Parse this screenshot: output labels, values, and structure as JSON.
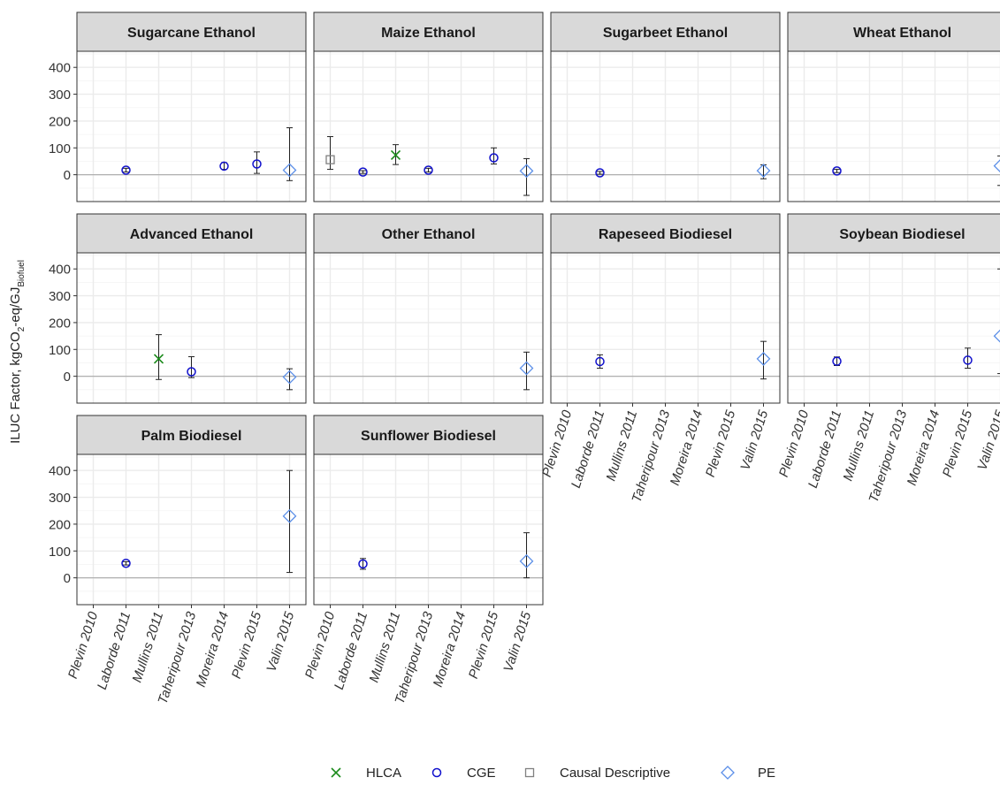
{
  "colors": {
    "HLCA": "#1a8a1a",
    "CGE": "#1010cc",
    "Causal Descriptive": "#808080",
    "PE": "#5b8fe8",
    "strip_fill": "#d9d9d9",
    "grid": "#ebebeb",
    "zero_line": "#b0b0b0"
  },
  "chart_data": {
    "type": "scatter",
    "ylabel": "ILUC Factor, kgCO2-eq/GJBiofuel",
    "ylabel_parts": {
      "a": "ILUC Factor, kgCO",
      "sub1": "2",
      "b": "-eq/GJ",
      "sub2": "Biofuel"
    },
    "yticks": [
      0,
      100,
      200,
      300,
      400
    ],
    "ylim": [
      -100,
      460
    ],
    "studies": [
      "Plevin 2010",
      "Laborde 2011",
      "Mullins 2011",
      "Taheripour 2013",
      "Moreira 2014",
      "Plevin 2015",
      "Valin 2015"
    ],
    "legend": [
      {
        "name": "HLCA",
        "marker": "x"
      },
      {
        "name": "CGE",
        "marker": "circle"
      },
      {
        "name": "Causal Descriptive",
        "marker": "square"
      },
      {
        "name": "PE",
        "marker": "diamond"
      }
    ],
    "legend_position": "bottom",
    "grid": true,
    "panels": [
      {
        "title": "Sugarcane Ethanol",
        "points": [
          {
            "study": "Laborde 2011",
            "type": "CGE",
            "y": 17,
            "lo": 10,
            "hi": 24
          },
          {
            "study": "Moreira 2014",
            "type": "CGE",
            "y": 32,
            "lo": 20,
            "hi": 45
          },
          {
            "study": "Plevin 2015",
            "type": "CGE",
            "y": 40,
            "lo": 5,
            "hi": 85
          },
          {
            "study": "Valin 2015",
            "type": "PE",
            "y": 17,
            "lo": -22,
            "hi": 175
          }
        ]
      },
      {
        "title": "Maize Ethanol",
        "points": [
          {
            "study": "Plevin 2010",
            "type": "Causal Descriptive",
            "y": 56,
            "lo": 20,
            "hi": 142
          },
          {
            "study": "Laborde 2011",
            "type": "CGE",
            "y": 10,
            "lo": 5,
            "hi": 15
          },
          {
            "study": "Mullins 2011",
            "type": "HLCA",
            "y": 73,
            "lo": 38,
            "hi": 112
          },
          {
            "study": "Taheripour 2013",
            "type": "CGE",
            "y": 17,
            "lo": 10,
            "hi": 24
          },
          {
            "study": "Plevin 2015",
            "type": "CGE",
            "y": 63,
            "lo": 40,
            "hi": 100
          },
          {
            "study": "Valin 2015",
            "type": "PE",
            "y": 14,
            "lo": -77,
            "hi": 60
          }
        ]
      },
      {
        "title": "Sugarbeet Ethanol",
        "points": [
          {
            "study": "Laborde 2011",
            "type": "CGE",
            "y": 7,
            "lo": 2,
            "hi": 12
          },
          {
            "study": "Valin 2015",
            "type": "PE",
            "y": 15,
            "lo": -15,
            "hi": 37
          }
        ]
      },
      {
        "title": "Wheat Ethanol",
        "points": [
          {
            "study": "Laborde 2011",
            "type": "CGE",
            "y": 14,
            "lo": 8,
            "hi": 20
          },
          {
            "study": "Valin 2015",
            "type": "PE",
            "y": 33,
            "lo": -40,
            "hi": 70
          }
        ]
      },
      {
        "title": "Advanced Ethanol",
        "points": [
          {
            "study": "Mullins 2011",
            "type": "HLCA",
            "y": 65,
            "lo": -12,
            "hi": 155
          },
          {
            "study": "Taheripour 2013",
            "type": "CGE",
            "y": 17,
            "lo": -5,
            "hi": 73
          },
          {
            "study": "Valin 2015",
            "type": "PE",
            "y": -3,
            "lo": -50,
            "hi": 28
          }
        ]
      },
      {
        "title": "Other Ethanol",
        "points": [
          {
            "study": "Valin 2015",
            "type": "PE",
            "y": 30,
            "lo": -50,
            "hi": 90
          }
        ]
      },
      {
        "title": "Rapeseed Biodiesel",
        "points": [
          {
            "study": "Laborde 2011",
            "type": "CGE",
            "y": 55,
            "lo": 30,
            "hi": 80
          },
          {
            "study": "Valin 2015",
            "type": "PE",
            "y": 65,
            "lo": -10,
            "hi": 130
          }
        ]
      },
      {
        "title": "Soybean Biodiesel",
        "points": [
          {
            "study": "Laborde 2011",
            "type": "CGE",
            "y": 56,
            "lo": 40,
            "hi": 72
          },
          {
            "study": "Plevin 2015",
            "type": "CGE",
            "y": 60,
            "lo": 30,
            "hi": 105
          },
          {
            "study": "Valin 2015",
            "type": "PE",
            "y": 150,
            "lo": 10,
            "hi": 400
          }
        ]
      },
      {
        "title": "Palm Biodiesel",
        "points": [
          {
            "study": "Laborde 2011",
            "type": "CGE",
            "y": 54,
            "lo": 48,
            "hi": 60
          },
          {
            "study": "Valin 2015",
            "type": "PE",
            "y": 230,
            "lo": 20,
            "hi": 400
          }
        ]
      },
      {
        "title": "Sunflower Biodiesel",
        "points": [
          {
            "study": "Laborde 2011",
            "type": "CGE",
            "y": 52,
            "lo": 32,
            "hi": 72
          },
          {
            "study": "Valin 2015",
            "type": "PE",
            "y": 62,
            "lo": 0,
            "hi": 168
          }
        ]
      }
    ]
  }
}
